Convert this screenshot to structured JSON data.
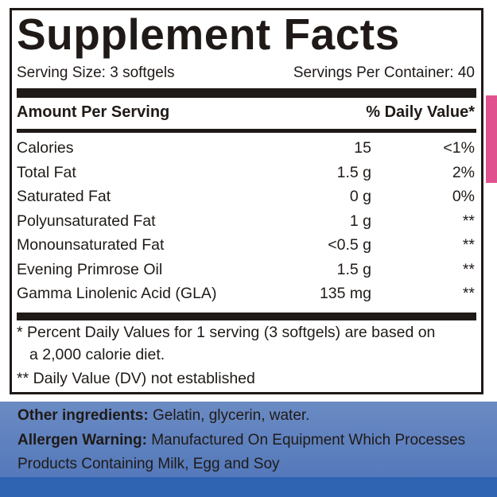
{
  "title": "Supplement Facts",
  "serving_size": "Serving Size: 3 softgels",
  "servings_per_container": "Servings Per Container: 40",
  "header": {
    "amount_label": "Amount Per Serving",
    "dv_label": "% Daily Value*"
  },
  "nutrients": [
    {
      "name": "Calories",
      "amount": "15",
      "dv": "<1%"
    },
    {
      "name": "Total Fat",
      "amount": "1.5 g",
      "dv": "2%"
    },
    {
      "name": "Saturated Fat",
      "amount": "0 g",
      "dv": "0%"
    },
    {
      "name": "Polyunsaturated Fat",
      "amount": "1 g",
      "dv": "**"
    },
    {
      "name": "Monounsaturated Fat",
      "amount": "<0.5 g",
      "dv": "**"
    },
    {
      "name": "Evening Primrose Oil",
      "amount": "1.5 g",
      "dv": "**"
    },
    {
      "name": "Gamma Linolenic Acid (GLA)",
      "amount": "135 mg",
      "dv": "**"
    }
  ],
  "footnotes": {
    "percent_line1": "* Percent Daily Values for 1 serving (3 softgels) are based on",
    "percent_line2": "a 2,000 calorie diet.",
    "dv_not_established": "** Daily Value (DV) not established"
  },
  "other": {
    "ingredients_label": "Other ingredients:",
    "ingredients_text": "Gelatin, glycerin, water.",
    "allergen_label": "Allergen Warning:",
    "allergen_text_line1": "Manufactured On Equipment Which Processes",
    "allergen_text_line2": "Products Containing Milk, Egg and Soy"
  },
  "colors": {
    "ink": "#1f1a17",
    "package_blue": "#8aa3cf",
    "package_dark_blue": "#2f64b3",
    "package_pink": "#e0528f"
  }
}
